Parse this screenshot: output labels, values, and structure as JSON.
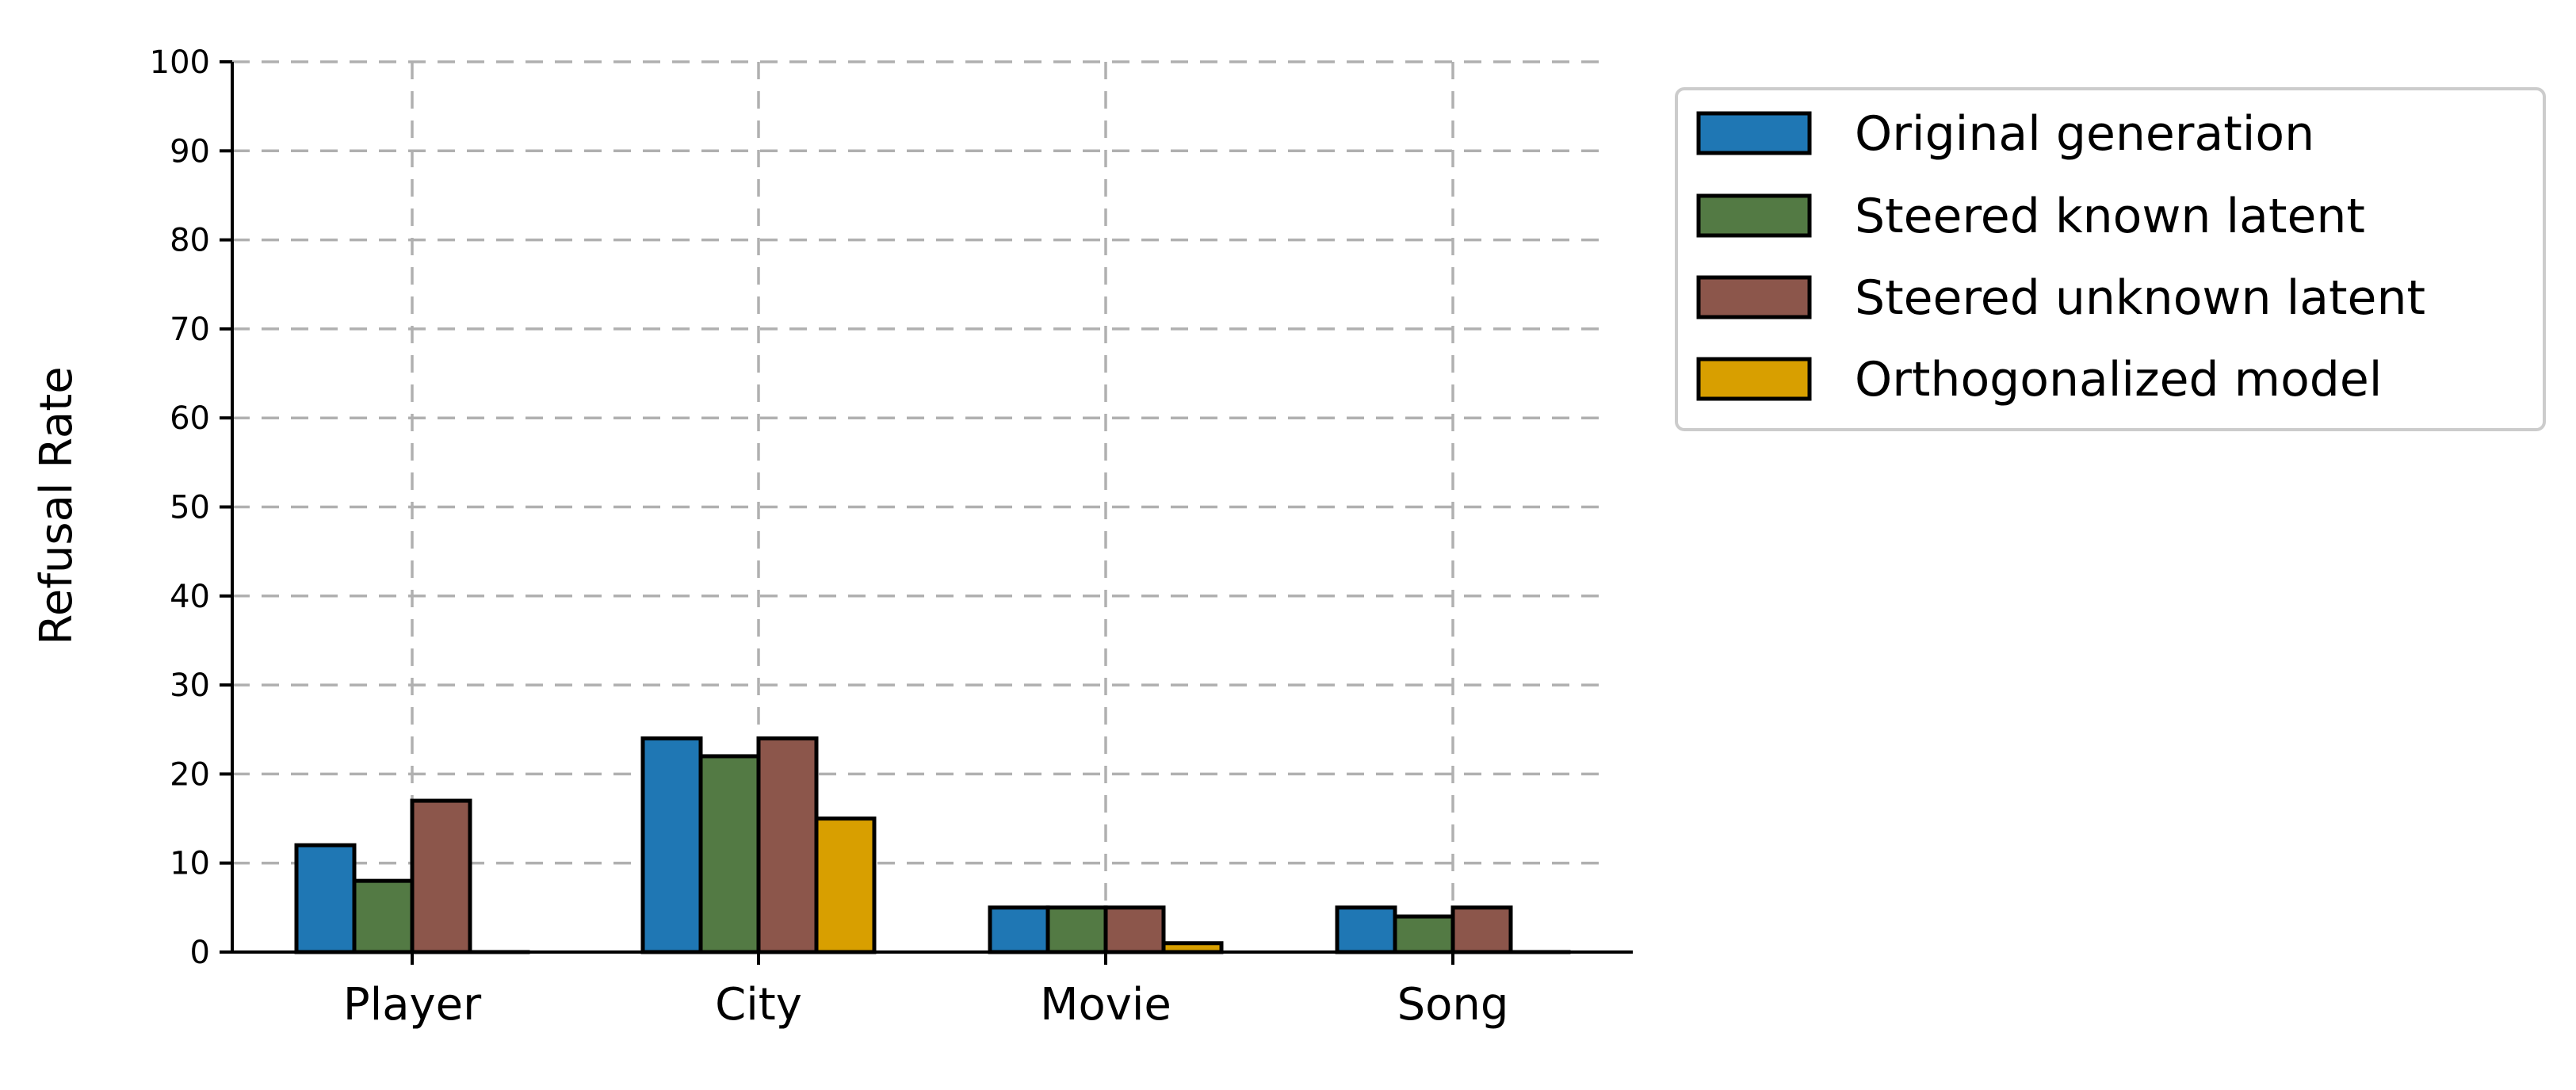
{
  "chart_data": {
    "type": "bar",
    "title": "",
    "xlabel": "",
    "ylabel": "Refusal Rate",
    "ylim": [
      0,
      100
    ],
    "yticks": [
      0,
      10,
      20,
      30,
      40,
      50,
      60,
      70,
      80,
      90,
      100
    ],
    "grid": true,
    "legend_position": "outside-right-top",
    "categories": [
      "Player",
      "City",
      "Movie",
      "Song"
    ],
    "series": [
      {
        "name": "Original generation",
        "color": "#1f77b4",
        "values": [
          12,
          24,
          5,
          5
        ]
      },
      {
        "name": "Steered known latent",
        "color": "#537a44",
        "values": [
          8,
          22,
          5,
          4
        ]
      },
      {
        "name": "Steered unknown latent",
        "color": "#8c564b",
        "values": [
          17,
          24,
          5,
          5
        ]
      },
      {
        "name": "Orthogonalized model",
        "color": "#d89f00",
        "values": [
          0,
          15,
          1,
          0
        ]
      }
    ]
  }
}
